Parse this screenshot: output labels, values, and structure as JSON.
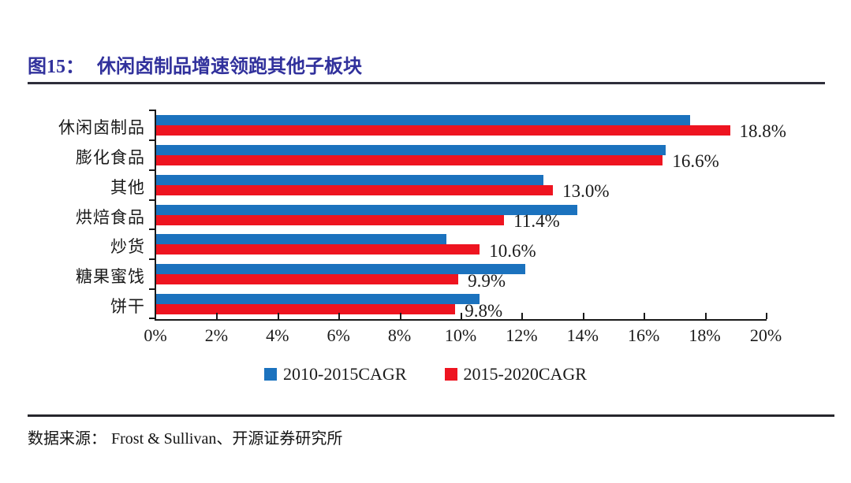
{
  "header": {
    "figure_label": "图15：",
    "figure_title": "休闲卤制品增速领跑其他子板块"
  },
  "chart_data": {
    "type": "bar",
    "orientation": "horizontal",
    "title": "图15：休闲卤制品增速领跑其他子板块",
    "categories": [
      "休闲卤制品",
      "膨化食品",
      "其他",
      "烘焙食品",
      "炒货",
      "糖果蜜饯",
      "饼干"
    ],
    "series": [
      {
        "name": "2010-2015CAGR",
        "color": "#1b72be",
        "values": [
          17.5,
          16.7,
          12.7,
          13.8,
          9.5,
          12.1,
          10.6
        ]
      },
      {
        "name": "2015-2020CAGR",
        "color": "#ee1420",
        "values": [
          18.8,
          16.6,
          13.0,
          11.4,
          10.6,
          9.9,
          9.8
        ]
      }
    ],
    "data_labels": [
      "18.8%",
      "16.6%",
      "13.0%",
      "11.4%",
      "10.6%",
      "9.9%",
      "9.8%"
    ],
    "data_label_series": "2015-2020CAGR",
    "xlabel": "",
    "ylabel": "",
    "xlim": [
      0,
      20
    ],
    "x_ticks": [
      "0%",
      "2%",
      "4%",
      "6%",
      "8%",
      "10%",
      "12%",
      "14%",
      "16%",
      "18%",
      "20%"
    ],
    "grid": false,
    "legend_position": "bottom"
  },
  "footer": {
    "source_label": "数据来源：",
    "source_text": "Frost & Sullivan、开源证券研究所"
  },
  "colors": {
    "title": "#31319c",
    "rule": "#2e2e3a",
    "axis": "#1a1a1a",
    "series_blue": "#1b72be",
    "series_red": "#ee1420"
  }
}
